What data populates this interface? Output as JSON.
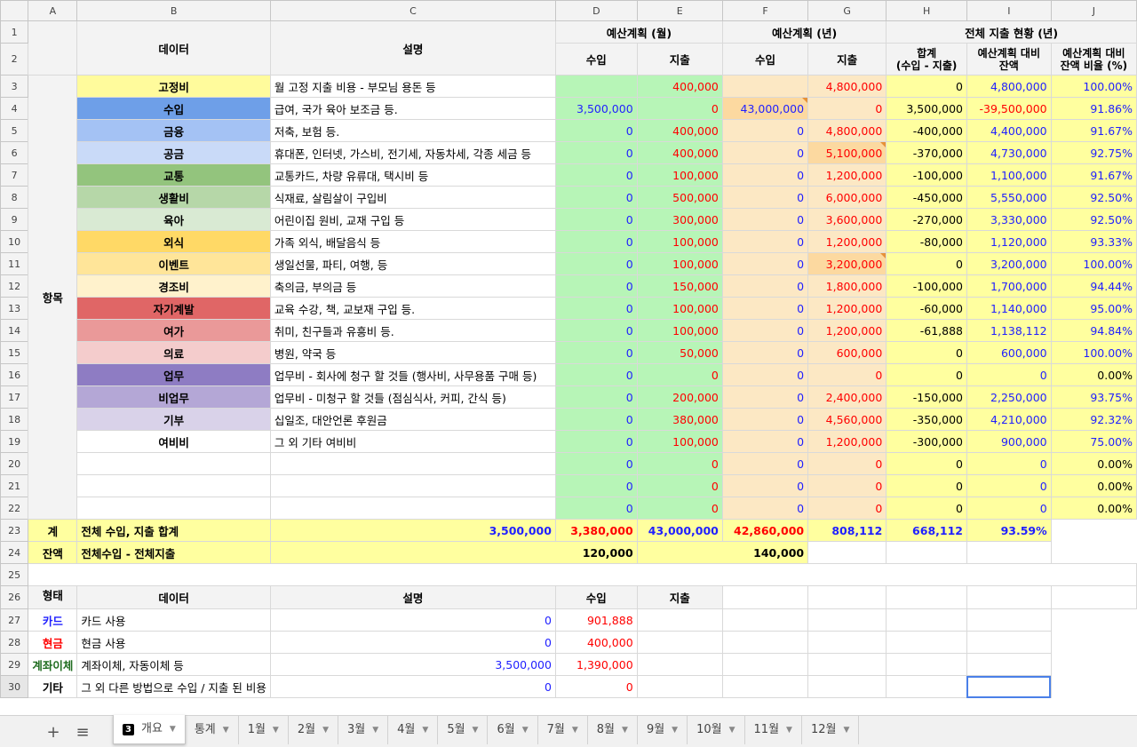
{
  "col_letters": [
    "A",
    "B",
    "C",
    "D",
    "E",
    "F",
    "G",
    "H",
    "I",
    "J"
  ],
  "headers": {
    "data": "데이터",
    "desc": "설명",
    "month_plan": "예산계획 (월)",
    "year_plan": "예산계획 (년)",
    "total_status": "전체 지출 현황 (년)",
    "income": "수입",
    "expense": "지출",
    "sum_l1": "합계",
    "sum_l2": "(수입 - 지출)",
    "remain_l1": "예산계획 대비",
    "remain_l2": "잔액",
    "ratio_l1": "예산계획 대비",
    "ratio_l2": "잔액 비율 (%)"
  },
  "group_items": "항목",
  "group_forms": "형태",
  "budget_rows": [
    {
      "cat": "고정비",
      "desc": "월 고정 지출 비용 - 부모님 용돈 등",
      "mi": "",
      "me": "400,000",
      "yi": "",
      "ye": "4,800,000",
      "sum": "0",
      "rem": "4,800,000",
      "ratio": "100.00%",
      "color": "#fffb9c"
    },
    {
      "cat": "수입",
      "desc": "급여, 국가 육아 보조금 등.",
      "mi": "3,500,000",
      "me": "0",
      "yi": "43,000,000",
      "ye": "0",
      "sum": "3,500,000",
      "rem": "-39,500,000",
      "ratio": "91.86%",
      "color": "#6e9fe8"
    },
    {
      "cat": "금융",
      "desc": "저축, 보험 등.",
      "mi": "0",
      "me": "400,000",
      "yi": "0",
      "ye": "4,800,000",
      "sum": "-400,000",
      "rem": "4,400,000",
      "ratio": "91.67%",
      "color": "#a4c2f4"
    },
    {
      "cat": "공금",
      "desc": "휴대폰, 인터넷, 가스비, 전기세, 자동차세, 각종 세금 등",
      "mi": "0",
      "me": "400,000",
      "yi": "0",
      "ye": "5,100,000",
      "sum": "-370,000",
      "rem": "4,730,000",
      "ratio": "92.75%",
      "color": "#c9daf8"
    },
    {
      "cat": "교통",
      "desc": "교통카드, 차량 유류대, 택시비 등",
      "mi": "0",
      "me": "100,000",
      "yi": "0",
      "ye": "1,200,000",
      "sum": "-100,000",
      "rem": "1,100,000",
      "ratio": "91.67%",
      "color": "#93c47d"
    },
    {
      "cat": "생활비",
      "desc": "식재료, 살림살이 구입비",
      "mi": "0",
      "me": "500,000",
      "yi": "0",
      "ye": "6,000,000",
      "sum": "-450,000",
      "rem": "5,550,000",
      "ratio": "92.50%",
      "color": "#b6d7a8"
    },
    {
      "cat": "육아",
      "desc": "어린이집 원비, 교재 구입 등",
      "mi": "0",
      "me": "300,000",
      "yi": "0",
      "ye": "3,600,000",
      "sum": "-270,000",
      "rem": "3,330,000",
      "ratio": "92.50%",
      "color": "#d9ead3"
    },
    {
      "cat": "외식",
      "desc": "가족 외식, 배달음식 등",
      "mi": "0",
      "me": "100,000",
      "yi": "0",
      "ye": "1,200,000",
      "sum": "-80,000",
      "rem": "1,120,000",
      "ratio": "93.33%",
      "color": "#ffd966"
    },
    {
      "cat": "이벤트",
      "desc": "생일선물, 파티, 여행, 등",
      "mi": "0",
      "me": "100,000",
      "yi": "0",
      "ye": "3,200,000",
      "sum": "0",
      "rem": "3,200,000",
      "ratio": "100.00%",
      "color": "#ffe599"
    },
    {
      "cat": "경조비",
      "desc": "축의금, 부의금 등",
      "mi": "0",
      "me": "150,000",
      "yi": "0",
      "ye": "1,800,000",
      "sum": "-100,000",
      "rem": "1,700,000",
      "ratio": "94.44%",
      "color": "#fff2cc"
    },
    {
      "cat": "자기계발",
      "desc": "교육 수강, 책, 교보재 구입 등.",
      "mi": "0",
      "me": "100,000",
      "yi": "0",
      "ye": "1,200,000",
      "sum": "-60,000",
      "rem": "1,140,000",
      "ratio": "95.00%",
      "color": "#e06666"
    },
    {
      "cat": "여가",
      "desc": "취미, 친구들과 유흥비 등.",
      "mi": "0",
      "me": "100,000",
      "yi": "0",
      "ye": "1,200,000",
      "sum": "-61,888",
      "rem": "1,138,112",
      "ratio": "94.84%",
      "color": "#ea9999"
    },
    {
      "cat": "의료",
      "desc": "병원, 약국 등",
      "mi": "0",
      "me": "50,000",
      "yi": "0",
      "ye": "600,000",
      "sum": "0",
      "rem": "600,000",
      "ratio": "100.00%",
      "color": "#f4cccc"
    },
    {
      "cat": "업무",
      "desc": "업무비 - 회사에 청구 할 것들 (행사비, 사무용품 구매 등)",
      "mi": "0",
      "me": "0",
      "yi": "0",
      "ye": "0",
      "sum": "0",
      "rem": "0",
      "ratio": "0.00%",
      "color": "#8e7cc3"
    },
    {
      "cat": "비업무",
      "desc": "업무비 - 미청구 할 것들 (점심식사, 커피, 간식 등)",
      "mi": "0",
      "me": "200,000",
      "yi": "0",
      "ye": "2,400,000",
      "sum": "-150,000",
      "rem": "2,250,000",
      "ratio": "93.75%",
      "color": "#b4a7d6"
    },
    {
      "cat": "기부",
      "desc": "십일조, 대안언론 후원금",
      "mi": "0",
      "me": "380,000",
      "yi": "0",
      "ye": "4,560,000",
      "sum": "-350,000",
      "rem": "4,210,000",
      "ratio": "92.32%",
      "color": "#d9d2e9"
    },
    {
      "cat": "여비비",
      "desc": "그 외 기타 여비비",
      "mi": "0",
      "me": "100,000",
      "yi": "0",
      "ye": "1,200,000",
      "sum": "-300,000",
      "rem": "900,000",
      "ratio": "75.00%",
      "color": "#ffffff"
    },
    {
      "cat": "",
      "desc": "",
      "mi": "0",
      "me": "0",
      "yi": "0",
      "ye": "0",
      "sum": "0",
      "rem": "0",
      "ratio": "0.00%",
      "color": "#ffffff"
    },
    {
      "cat": "",
      "desc": "",
      "mi": "0",
      "me": "0",
      "yi": "0",
      "ye": "0",
      "sum": "0",
      "rem": "0",
      "ratio": "0.00%",
      "color": "#ffffff"
    },
    {
      "cat": "",
      "desc": "",
      "mi": "0",
      "me": "0",
      "yi": "0",
      "ye": "0",
      "sum": "0",
      "rem": "0",
      "ratio": "0.00%",
      "color": "#ffffff"
    }
  ],
  "total_row": {
    "label": "계",
    "desc": "전체 수입, 지출 합계",
    "mi": "3,500,000",
    "me": "3,380,000",
    "yi": "43,000,000",
    "ye": "42,860,000",
    "sum": "808,112",
    "rem": "668,112",
    "ratio": "93.59%"
  },
  "balance_row": {
    "label": "잔액",
    "desc": "전체수입 - 전체지출",
    "month": "120,000",
    "year": "140,000"
  },
  "forms_header": {
    "data": "데이터",
    "desc": "설명",
    "income": "수입",
    "expense": "지출"
  },
  "forms_rows": [
    {
      "label": "카드",
      "desc": "카드 사용",
      "inc": "0",
      "exp": "901,888",
      "color": "#1f1fff"
    },
    {
      "label": "현금",
      "desc": "현금 사용",
      "inc": "0",
      "exp": "400,000",
      "color": "#ff0000"
    },
    {
      "label": "계좌이체",
      "desc": "계좌이체, 자동이체 등",
      "inc": "3,500,000",
      "exp": "1,390,000",
      "color": "#1e6b1e"
    },
    {
      "label": "기타",
      "desc": "그 외 다른 방법으로 수입 / 지출 된 비용",
      "inc": "0",
      "exp": "0",
      "color": "#000000"
    }
  ],
  "sheet_tabs": {
    "add": "+",
    "list": "≡",
    "active_num": "3",
    "active_label": "개요",
    "others": [
      "통계",
      "1월",
      "2월",
      "3월",
      "4월",
      "5월",
      "6월",
      "7월",
      "8월",
      "9월",
      "10월",
      "11월",
      "12월"
    ]
  }
}
